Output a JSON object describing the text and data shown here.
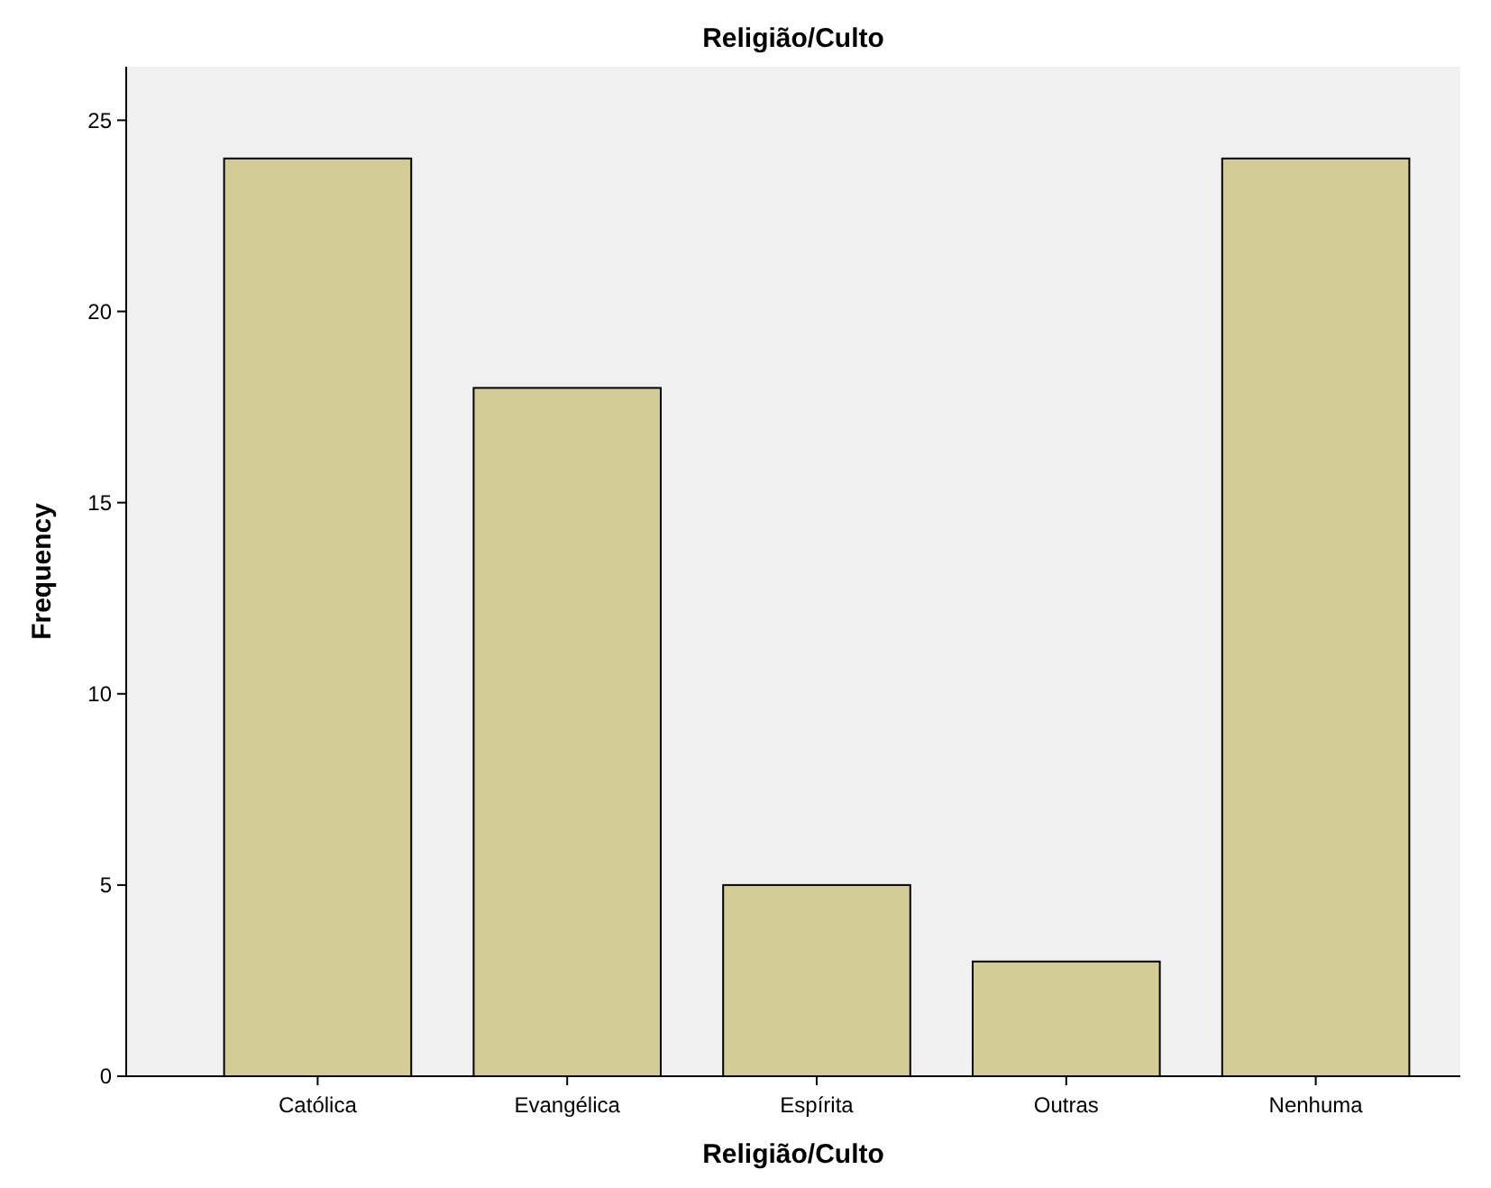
{
  "chart_data": {
    "type": "bar",
    "title": "Religião/Culto",
    "xlabel": "Religião/Culto",
    "ylabel": "Frequency",
    "categories": [
      "Católica",
      "Evangélica",
      "Espírita",
      "Outras",
      "Nenhuma"
    ],
    "values": [
      24,
      18,
      5,
      3,
      24
    ],
    "color": "#d3cd95",
    "ylim": [
      0,
      26.4
    ],
    "yticks": [
      0,
      5,
      10,
      15,
      20,
      25
    ],
    "grid": false
  }
}
